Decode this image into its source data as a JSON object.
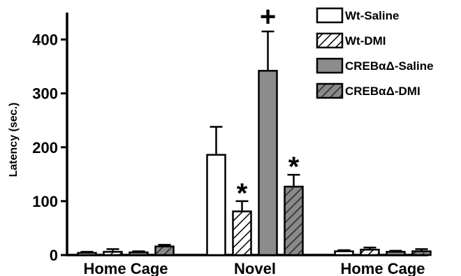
{
  "chart_data": {
    "type": "bar",
    "title": "",
    "ylabel": "Latency (sec.)",
    "xlabel": "",
    "ylim": [
      0,
      450
    ],
    "yticks": [
      0,
      100,
      200,
      300,
      400
    ],
    "categories": [
      "Home Cage",
      "Novel",
      "Home Cage"
    ],
    "series": [
      {
        "name": "Wt-Saline",
        "values": [
          4,
          186,
          7
        ],
        "errors": [
          2,
          52,
          2
        ],
        "fill": "open",
        "color": "#ffffff"
      },
      {
        "name": "Wt-DMI",
        "values": [
          6,
          81,
          10
        ],
        "errors": [
          5,
          19,
          4
        ],
        "fill": "hatch-light",
        "color": "#ffffff"
      },
      {
        "name": "CREBαΔ-Saline",
        "values": [
          5,
          342,
          6
        ],
        "errors": [
          2,
          73,
          2
        ],
        "fill": "solid",
        "color": "#8c8c8c"
      },
      {
        "name": "CREBαΔ-DMI",
        "values": [
          16,
          127,
          7
        ],
        "errors": [
          3,
          22,
          4
        ],
        "fill": "hatch-dark",
        "color": "#6e6e6e"
      }
    ],
    "annotations": [
      {
        "text": "*",
        "category": "Novel",
        "series": "Wt-DMI"
      },
      {
        "text": "+",
        "category": "Novel",
        "series": "CREBαΔ-Saline"
      },
      {
        "text": "*",
        "category": "Novel",
        "series": "CREBαΔ-DMI"
      }
    ],
    "legend_position": "top-right",
    "grid": false
  }
}
